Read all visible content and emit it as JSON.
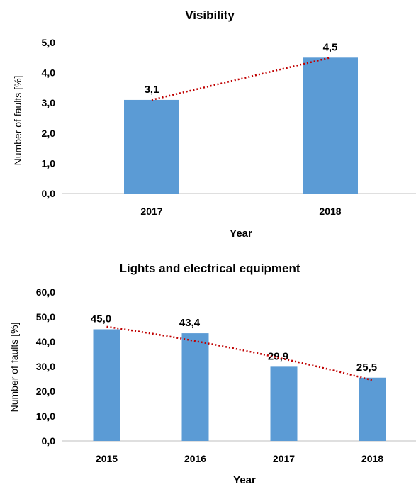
{
  "chart_data": [
    {
      "type": "bar",
      "title": "Visibility",
      "xlabel": "Year",
      "ylabel": "Number of faults [%]",
      "categories": [
        "2017",
        "2018"
      ],
      "values": [
        3.1,
        4.5
      ],
      "value_labels": [
        "3,1",
        "4,5"
      ],
      "y_ticks": [
        "0,0",
        "1,0",
        "2,0",
        "3,0",
        "4,0",
        "5,0"
      ],
      "ylim": [
        0,
        5
      ],
      "trendline": "linear",
      "grid": false,
      "legend": "none",
      "bar_color": "#5b9bd5",
      "trend_color": "#c00000"
    },
    {
      "type": "bar",
      "title": "Lights and electrical equipment",
      "xlabel": "Year",
      "ylabel": "Number of faults [%]",
      "categories": [
        "2015",
        "2016",
        "2017",
        "2018"
      ],
      "values": [
        45.0,
        43.4,
        29.9,
        25.5
      ],
      "value_labels": [
        "45,0",
        "43,4",
        "29,9",
        "25,5"
      ],
      "y_ticks": [
        "0,0",
        "10,0",
        "20,0",
        "30,0",
        "40,0",
        "50,0",
        "60,0"
      ],
      "ylim": [
        0,
        60
      ],
      "trendline": "polynomial",
      "grid": false,
      "legend": "none",
      "bar_color": "#5b9bd5",
      "trend_color": "#c00000"
    }
  ]
}
